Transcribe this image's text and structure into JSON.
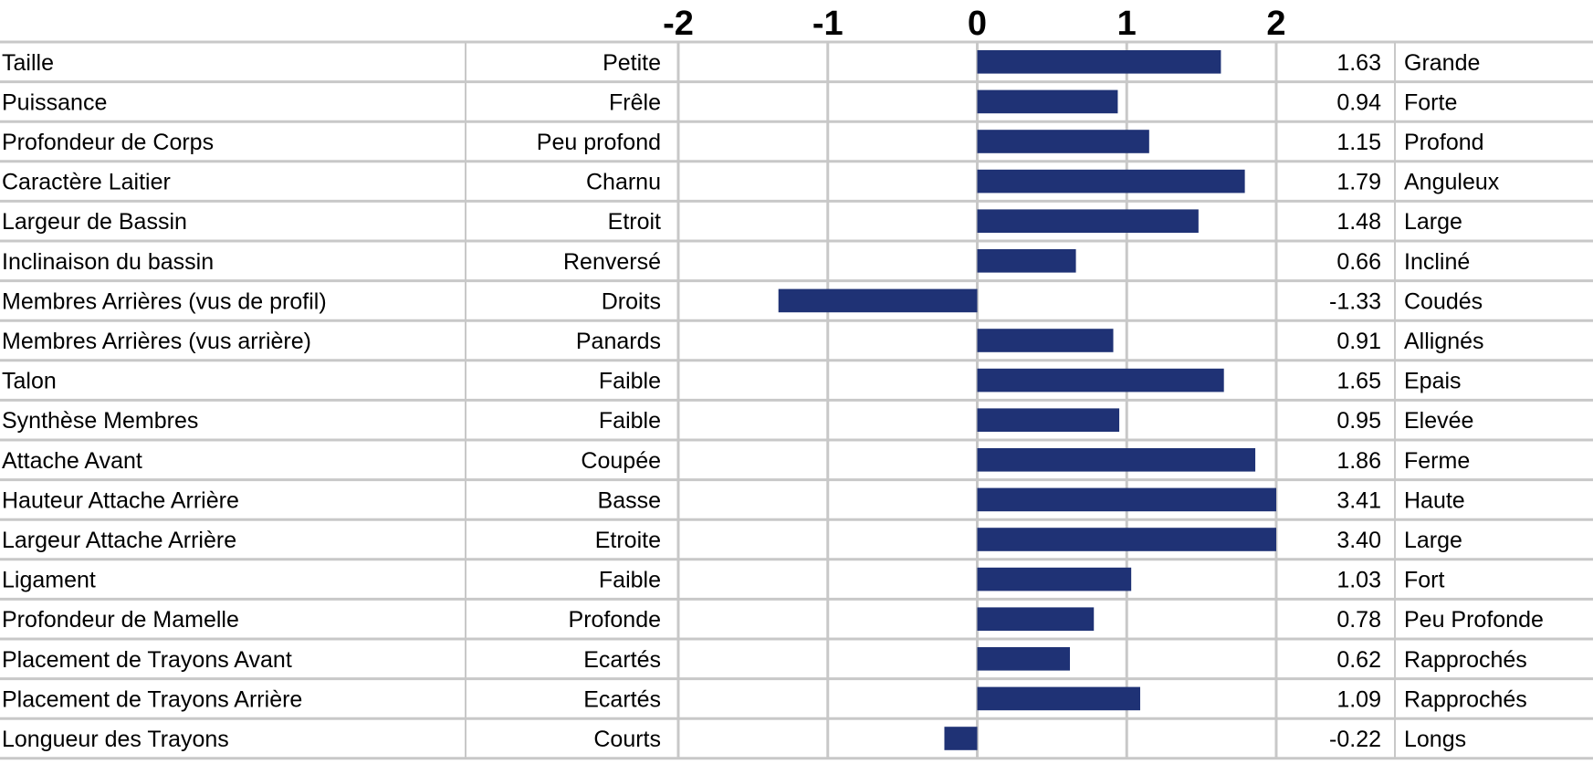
{
  "chart_data": {
    "type": "bar",
    "orientation": "horizontal",
    "xlim": [
      -2,
      2
    ],
    "ticks": [
      "-2",
      "-1",
      "0",
      "1",
      "2"
    ],
    "grid": true,
    "bar_color": "#1f3275",
    "rows": [
      {
        "trait": "Taille",
        "low": "Petite",
        "value": 1.63,
        "label": "1.63",
        "high": "Grande"
      },
      {
        "trait": "Puissance",
        "low": "Frêle",
        "value": 0.94,
        "label": "0.94",
        "high": "Forte"
      },
      {
        "trait": "Profondeur de Corps",
        "low": "Peu profond",
        "value": 1.15,
        "label": "1.15",
        "high": "Profond"
      },
      {
        "trait": "Caractère Laitier",
        "low": "Charnu",
        "value": 1.79,
        "label": "1.79",
        "high": "Anguleux"
      },
      {
        "trait": "Largeur de Bassin",
        "low": "Etroit",
        "value": 1.48,
        "label": "1.48",
        "high": "Large"
      },
      {
        "trait": "Inclinaison du bassin",
        "low": "Renversé",
        "value": 0.66,
        "label": "0.66",
        "high": "Incliné"
      },
      {
        "trait": "Membres Arrières (vus de profil)",
        "low": "Droits",
        "value": -1.33,
        "label": "-1.33",
        "high": "Coudés"
      },
      {
        "trait": "Membres Arrières (vus arrière)",
        "low": "Panards",
        "value": 0.91,
        "label": "0.91",
        "high": "Allignés"
      },
      {
        "trait": "Talon",
        "low": "Faible",
        "value": 1.65,
        "label": "1.65",
        "high": "Epais"
      },
      {
        "trait": "Synthèse Membres",
        "low": "Faible",
        "value": 0.95,
        "label": "0.95",
        "high": "Elevée"
      },
      {
        "trait": "Attache Avant",
        "low": "Coupée",
        "value": 1.86,
        "label": "1.86",
        "high": "Ferme"
      },
      {
        "trait": "Hauteur Attache Arrière",
        "low": "Basse",
        "value": 3.41,
        "label": "3.41",
        "high": "Haute"
      },
      {
        "trait": "Largeur Attache Arrière",
        "low": "Etroite",
        "value": 3.4,
        "label": "3.40",
        "high": "Large"
      },
      {
        "trait": "Ligament",
        "low": "Faible",
        "value": 1.03,
        "label": "1.03",
        "high": "Fort"
      },
      {
        "trait": "Profondeur de Mamelle",
        "low": "Profonde",
        "value": 0.78,
        "label": "0.78",
        "high": "Peu Profonde"
      },
      {
        "trait": "Placement de Trayons Avant",
        "low": "Ecartés",
        "value": 0.62,
        "label": "0.62",
        "high": "Rapprochés"
      },
      {
        "trait": "Placement de Trayons Arrière",
        "low": "Ecartés",
        "value": 1.09,
        "label": "1.09",
        "high": "Rapprochés"
      },
      {
        "trait": "Longueur des Trayons",
        "low": "Courts",
        "value": -0.22,
        "label": "-0.22",
        "high": "Longs"
      }
    ]
  }
}
